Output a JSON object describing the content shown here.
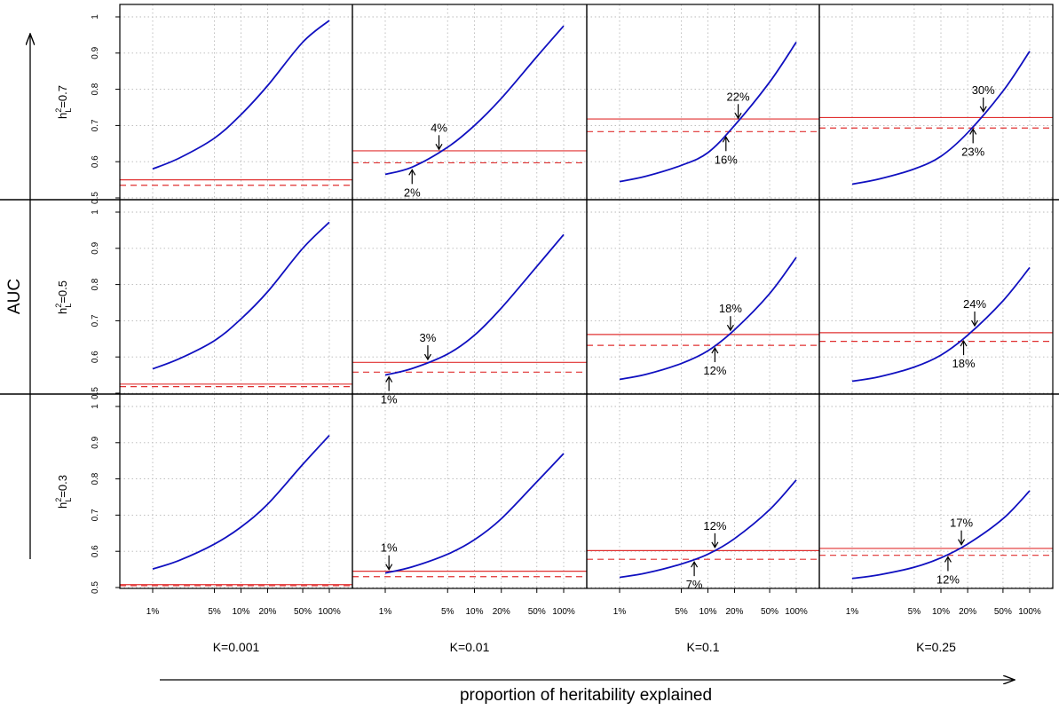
{
  "chart_data": {
    "type": "line",
    "y_axis_title": "AUC",
    "x_axis_title": "proportion of heritability explained",
    "x_scale": "log",
    "x_ticks": [
      0.01,
      0.05,
      0.1,
      0.2,
      0.5,
      1.0
    ],
    "x_tick_labels": [
      "1%",
      "5%",
      "10%",
      "20%",
      "50%",
      "100%"
    ],
    "xlim": [
      0.01,
      1.0
    ],
    "ylim": [
      0.5,
      1.0
    ],
    "y_ticks": [
      0.5,
      0.6,
      0.7,
      0.8,
      0.9,
      1.0
    ],
    "y_tick_labels": [
      "0.5",
      "0.6",
      "0.7",
      "0.8",
      "0.9",
      "1"
    ],
    "grid": true,
    "line_color": "#1010c0",
    "threshold_color": "#e03030",
    "columns": [
      {
        "label": "K=0.001"
      },
      {
        "label": "K=0.01"
      },
      {
        "label": "K=0.1"
      },
      {
        "label": "K=0.25"
      }
    ],
    "rows": [
      {
        "label_base": "h",
        "label_sup": "2",
        "label_sub": "L",
        "label_value": "=0.7"
      },
      {
        "label_base": "h",
        "label_sup": "2",
        "label_sub": "L",
        "label_value": "=0.5"
      },
      {
        "label_base": "h",
        "label_sup": "2",
        "label_sub": "L",
        "label_value": "=0.3"
      }
    ],
    "panels": [
      {
        "row": 0,
        "col": 0,
        "curve": {
          "x": [
            0.01,
            0.02,
            0.05,
            0.1,
            0.2,
            0.5,
            1.0
          ],
          "y": [
            0.58,
            0.61,
            0.665,
            0.73,
            0.81,
            0.93,
            0.99
          ]
        },
        "solid_line": 0.55,
        "dashed_line": 0.535,
        "annotations": []
      },
      {
        "row": 0,
        "col": 1,
        "curve": {
          "x": [
            0.01,
            0.02,
            0.05,
            0.1,
            0.2,
            0.5,
            1.0
          ],
          "y": [
            0.565,
            0.585,
            0.64,
            0.7,
            0.775,
            0.89,
            0.975
          ]
        },
        "solid_line": 0.63,
        "dashed_line": 0.597,
        "annotations": [
          {
            "text": "4%",
            "x": 0.04,
            "target": "solid",
            "position": "above"
          },
          {
            "text": "2%",
            "x": 0.02,
            "target": "dashed",
            "position": "below"
          }
        ]
      },
      {
        "row": 0,
        "col": 2,
        "curve": {
          "x": [
            0.01,
            0.02,
            0.05,
            0.1,
            0.2,
            0.5,
            1.0
          ],
          "y": [
            0.545,
            0.56,
            0.59,
            0.625,
            0.7,
            0.82,
            0.93
          ]
        },
        "solid_line": 0.718,
        "dashed_line": 0.683,
        "annotations": [
          {
            "text": "22%",
            "x": 0.22,
            "target": "solid",
            "position": "above"
          },
          {
            "text": "16%",
            "x": 0.16,
            "target": "dashed",
            "position": "below"
          }
        ]
      },
      {
        "row": 0,
        "col": 3,
        "curve": {
          "x": [
            0.01,
            0.02,
            0.05,
            0.1,
            0.2,
            0.5,
            1.0
          ],
          "y": [
            0.538,
            0.552,
            0.58,
            0.615,
            0.68,
            0.795,
            0.905
          ]
        },
        "solid_line": 0.722,
        "dashed_line": 0.693,
        "annotations": [
          {
            "text": "30%",
            "x": 0.3,
            "target": "solid",
            "position": "above"
          },
          {
            "text": "23%",
            "x": 0.23,
            "target": "dashed",
            "position": "below"
          }
        ]
      },
      {
        "row": 1,
        "col": 0,
        "curve": {
          "x": [
            0.01,
            0.02,
            0.05,
            0.1,
            0.2,
            0.5,
            1.0
          ],
          "y": [
            0.567,
            0.595,
            0.645,
            0.705,
            0.78,
            0.9,
            0.972
          ]
        },
        "solid_line": 0.525,
        "dashed_line": 0.518,
        "annotations": []
      },
      {
        "row": 1,
        "col": 1,
        "curve": {
          "x": [
            0.01,
            0.02,
            0.05,
            0.1,
            0.2,
            0.5,
            1.0
          ],
          "y": [
            0.55,
            0.568,
            0.608,
            0.66,
            0.735,
            0.85,
            0.938
          ]
        },
        "solid_line": 0.585,
        "dashed_line": 0.558,
        "annotations": [
          {
            "text": "3%",
            "x": 0.03,
            "target": "solid",
            "position": "above"
          },
          {
            "text": "1%",
            "x": 0.011,
            "target": "dashed",
            "position": "below"
          }
        ]
      },
      {
        "row": 1,
        "col": 2,
        "curve": {
          "x": [
            0.01,
            0.02,
            0.05,
            0.1,
            0.2,
            0.5,
            1.0
          ],
          "y": [
            0.538,
            0.552,
            0.582,
            0.617,
            0.675,
            0.775,
            0.875
          ]
        },
        "solid_line": 0.662,
        "dashed_line": 0.632,
        "annotations": [
          {
            "text": "18%",
            "x": 0.18,
            "target": "solid",
            "position": "above"
          },
          {
            "text": "12%",
            "x": 0.12,
            "target": "dashed",
            "position": "below"
          }
        ]
      },
      {
        "row": 1,
        "col": 3,
        "curve": {
          "x": [
            0.01,
            0.02,
            0.05,
            0.1,
            0.2,
            0.5,
            1.0
          ],
          "y": [
            0.533,
            0.545,
            0.572,
            0.605,
            0.66,
            0.755,
            0.847
          ]
        },
        "solid_line": 0.667,
        "dashed_line": 0.643,
        "annotations": [
          {
            "text": "24%",
            "x": 0.24,
            "target": "solid",
            "position": "above"
          },
          {
            "text": "18%",
            "x": 0.18,
            "target": "dashed",
            "position": "below"
          }
        ]
      },
      {
        "row": 2,
        "col": 0,
        "curve": {
          "x": [
            0.01,
            0.02,
            0.05,
            0.1,
            0.2,
            0.5,
            1.0
          ],
          "y": [
            0.551,
            0.575,
            0.62,
            0.667,
            0.73,
            0.84,
            0.92
          ]
        },
        "solid_line": 0.508,
        "dashed_line": 0.505,
        "annotations": []
      },
      {
        "row": 2,
        "col": 1,
        "curve": {
          "x": [
            0.01,
            0.02,
            0.05,
            0.1,
            0.2,
            0.5,
            1.0
          ],
          "y": [
            0.54,
            0.557,
            0.592,
            0.632,
            0.69,
            0.792,
            0.87
          ]
        },
        "solid_line": 0.545,
        "dashed_line": 0.53,
        "annotations": [
          {
            "text": "1%",
            "x": 0.011,
            "target": "solid",
            "position": "above"
          }
        ]
      },
      {
        "row": 2,
        "col": 2,
        "curve": {
          "x": [
            0.01,
            0.02,
            0.05,
            0.1,
            0.2,
            0.5,
            1.0
          ],
          "y": [
            0.528,
            0.54,
            0.565,
            0.592,
            0.635,
            0.715,
            0.797
          ]
        },
        "solid_line": 0.602,
        "dashed_line": 0.578,
        "annotations": [
          {
            "text": "12%",
            "x": 0.12,
            "target": "solid",
            "position": "above"
          },
          {
            "text": "7%",
            "x": 0.07,
            "target": "dashed",
            "position": "below"
          }
        ]
      },
      {
        "row": 2,
        "col": 3,
        "curve": {
          "x": [
            0.01,
            0.02,
            0.05,
            0.1,
            0.2,
            0.5,
            1.0
          ],
          "y": [
            0.525,
            0.535,
            0.556,
            0.582,
            0.62,
            0.69,
            0.767
          ]
        },
        "solid_line": 0.608,
        "dashed_line": 0.589,
        "annotations": [
          {
            "text": "17%",
            "x": 0.17,
            "target": "solid",
            "position": "above"
          },
          {
            "text": "12%",
            "x": 0.12,
            "target": "dashed",
            "position": "below"
          }
        ]
      }
    ]
  }
}
